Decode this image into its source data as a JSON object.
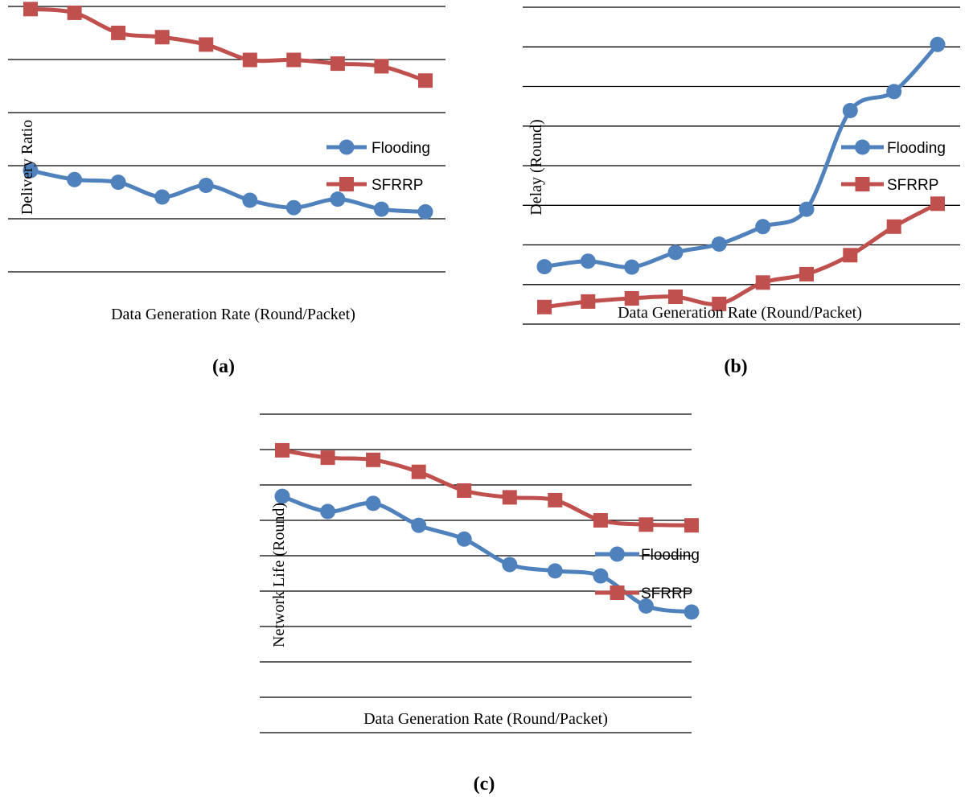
{
  "colors": {
    "flooding": "#4f81bd",
    "sfrrp": "#c0504d"
  },
  "chart_data": [
    {
      "id": "a",
      "type": "line",
      "caption": "(a)",
      "xlabel": "Data Generation Rate (Round/Packet)",
      "ylabel": "Delivery Ratio",
      "x": [
        1,
        2,
        3,
        4,
        5,
        6,
        7,
        8,
        9,
        10
      ],
      "ylim": [
        0,
        6
      ],
      "grid": true,
      "legend": "right",
      "series": [
        {
          "name": "Flooding",
          "marker": "circle",
          "values": [
            2.9,
            2.73,
            2.68,
            2.4,
            2.62,
            2.34,
            2.2,
            2.36,
            2.17,
            2.12
          ]
        },
        {
          "name": "SFRRP",
          "marker": "square",
          "values": [
            5.95,
            5.88,
            5.5,
            5.42,
            5.28,
            4.99,
            4.99,
            4.92,
            4.87,
            4.6
          ]
        }
      ]
    },
    {
      "id": "b",
      "type": "line",
      "caption": "(b)",
      "xlabel": "Data Generation Rate (Round/Packet)",
      "ylabel": "Delay (Round)",
      "x": [
        1,
        2,
        3,
        4,
        5,
        6,
        7,
        8,
        9,
        10
      ],
      "ylim": [
        0,
        8
      ],
      "grid": true,
      "legend": "right",
      "series": [
        {
          "name": "Flooding",
          "marker": "circle",
          "values": [
            1.45,
            1.59,
            1.44,
            1.81,
            2.02,
            2.46,
            2.9,
            5.39,
            5.87,
            7.06
          ]
        },
        {
          "name": "SFRRP",
          "marker": "square",
          "values": [
            0.43,
            0.57,
            0.65,
            0.69,
            0.51,
            1.05,
            1.26,
            1.74,
            2.46,
            3.04
          ]
        }
      ]
    },
    {
      "id": "c",
      "type": "line",
      "caption": "(c)",
      "xlabel": "Data Generation Rate  (Round/Packet)",
      "ylabel": "Network Life (Round)",
      "x": [
        1,
        2,
        3,
        4,
        5,
        6,
        7,
        8,
        9,
        10
      ],
      "ylim": [
        0,
        9
      ],
      "grid": true,
      "legend": "right",
      "series": [
        {
          "name": "Flooding",
          "marker": "circle",
          "values": [
            6.68,
            6.25,
            6.48,
            5.86,
            5.47,
            4.75,
            4.57,
            4.43,
            3.58,
            3.41
          ]
        },
        {
          "name": "SFRRP",
          "marker": "square",
          "values": [
            7.98,
            7.77,
            7.71,
            7.37,
            6.84,
            6.65,
            6.57,
            6.0,
            5.88,
            5.86
          ]
        }
      ]
    }
  ]
}
